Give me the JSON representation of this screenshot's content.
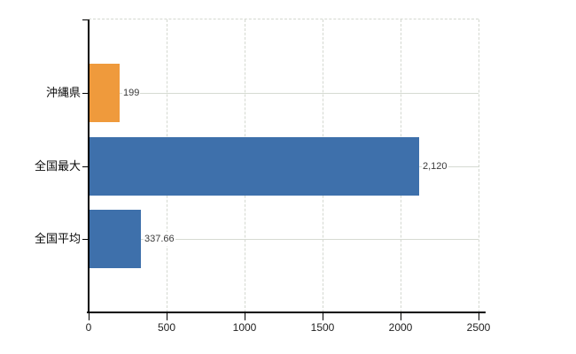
{
  "chart": {
    "title": "",
    "background": "#ffffff"
  },
  "chart_data": {
    "type": "bar",
    "orientation": "horizontal",
    "title": "",
    "xlabel": "",
    "ylabel": "",
    "categories": [
      "沖縄県",
      "全国最大",
      "全国平均"
    ],
    "values": [
      199,
      2120,
      337.66
    ],
    "value_labels": [
      "199",
      "2,120",
      "337.66"
    ],
    "bar_colors": [
      "#EF9A3C",
      "#3E70AB",
      "#3E70AB"
    ],
    "xlim": [
      0,
      2500
    ],
    "xticks": [
      0,
      500,
      1000,
      1500,
      2000,
      2500
    ],
    "xtick_labels": [
      "0",
      "500",
      "1000",
      "1500",
      "2000",
      "2500"
    ],
    "grid": true,
    "legend_position": "none"
  },
  "colors": {
    "bar_orange": "#EF9A3C",
    "bar_blue": "#3E70AB",
    "gridline": "#D4D8D0",
    "axis": "#000000",
    "tick_label_text": "#222222",
    "value_label_text": "#3A3A3A",
    "category_label_text": "#0A0A0A",
    "background": "#FFFFFF"
  }
}
